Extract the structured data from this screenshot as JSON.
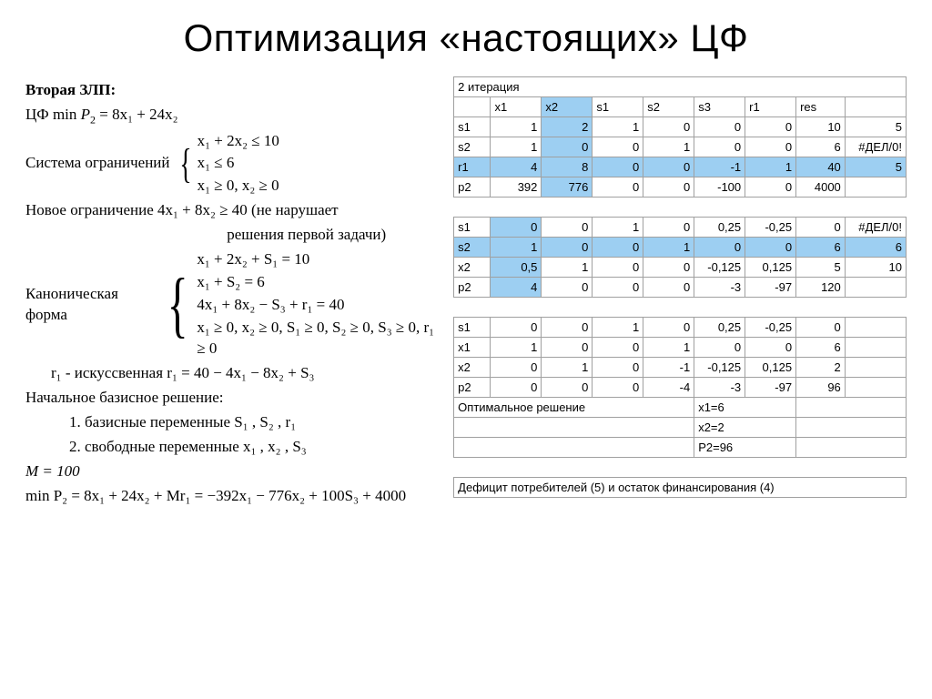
{
  "title": "Оптимизация «настоящих» ЦФ",
  "left": {
    "h1": "Вторая ЗЛП:",
    "obj_label": "ЦФ  min",
    "obj_var": "P",
    "obj_sub": "2",
    "obj_rhs": "= 8x₁ + 24x₂",
    "constr_label": "Система ограничений",
    "constr1": "x₁ + 2x₂ ≤ 10",
    "constr2": "x₁ ≤ 6",
    "constr3": "x₁ ≥ 0,  x₂ ≥ 0",
    "newc_label": "Новое ограничение",
    "newc_formula": "4x₁ + 8x₂ ≥ 40",
    "newc_note": "(не нарушает",
    "newc_note2": "решения первой задачи)",
    "canon_label": "Каноническая форма",
    "canon1": "x₁ + 2x₂ + S₁ = 10",
    "canon2": "x₁ + S₂ = 6",
    "canon3": "4x₁ + 8x₂ − S₃ + r₁ = 40",
    "canon4": "x₁ ≥ 0, x₂ ≥ 0, S₁ ≥ 0, S₂ ≥ 0, S₃ ≥ 0, r₁ ≥ 0",
    "artificial": "r₁ - искусcвенная   r₁ = 40 − 4x₁ − 8x₂ + S₃",
    "initial_label": "Начальное базисное решение:",
    "initial1": "1.  базисные переменные  S₁ , S₂ , r₁",
    "initial2": "2.  свободные переменные  x₁ , x₂ , S₃",
    "M_label": "M = 100",
    "min_full": "min P₂ = 8x₁ + 24x₂ + Mr₁ = −392x₁ − 776x₂ + 100S₃ + 4000"
  },
  "right": {
    "iter_label": "2 итерация",
    "headers": [
      "",
      "x1",
      "x2",
      "s1",
      "s2",
      "s3",
      "r1",
      "res",
      ""
    ],
    "block1": [
      {
        "lab": "s1",
        "v": [
          "1",
          "2",
          "1",
          "0",
          "0",
          "0",
          "10",
          "5"
        ],
        "hlRow": false,
        "hlCol": 1
      },
      {
        "lab": "s2",
        "v": [
          "1",
          "0",
          "0",
          "1",
          "0",
          "0",
          "6",
          "#ДЕЛ/0!"
        ],
        "hlRow": false,
        "hlCol": 1
      },
      {
        "lab": "r1",
        "v": [
          "4",
          "8",
          "0",
          "0",
          "-1",
          "1",
          "40",
          "5"
        ],
        "hlRow": true,
        "hlCol": 1
      },
      {
        "lab": "p2",
        "v": [
          "392",
          "776",
          "0",
          "0",
          "-100",
          "0",
          "4000",
          ""
        ],
        "hlRow": false,
        "hlCol": 1
      }
    ],
    "block2": [
      {
        "lab": "s1",
        "v": [
          "0",
          "0",
          "1",
          "0",
          "0,25",
          "-0,25",
          "0",
          "#ДЕЛ/0!"
        ],
        "hlRow": false,
        "hlCol": 0
      },
      {
        "lab": "s2",
        "v": [
          "1",
          "0",
          "0",
          "1",
          "0",
          "0",
          "6",
          "6"
        ],
        "hlRow": true,
        "hlCol": 0
      },
      {
        "lab": "x2",
        "v": [
          "0,5",
          "1",
          "0",
          "0",
          "-0,125",
          "0,125",
          "5",
          "10"
        ],
        "hlRow": false,
        "hlCol": 0
      },
      {
        "lab": "p2",
        "v": [
          "4",
          "0",
          "0",
          "0",
          "-3",
          "-97",
          "120",
          ""
        ],
        "hlRow": false,
        "hlCol": 0
      }
    ],
    "block3": [
      {
        "lab": "s1",
        "v": [
          "0",
          "0",
          "1",
          "0",
          "0,25",
          "-0,25",
          "0",
          ""
        ]
      },
      {
        "lab": "x1",
        "v": [
          "1",
          "0",
          "0",
          "1",
          "0",
          "0",
          "6",
          ""
        ]
      },
      {
        "lab": "x2",
        "v": [
          "0",
          "1",
          "0",
          "-1",
          "-0,125",
          "0,125",
          "2",
          ""
        ]
      },
      {
        "lab": "p2",
        "v": [
          "0",
          "0",
          "0",
          "-4",
          "-3",
          "-97",
          "96",
          ""
        ]
      }
    ],
    "opt_label": "Оптимальное решение",
    "opt1": "x1=6",
    "opt2": "x2=2",
    "opt3": "P2=96",
    "deficit": "Дефицит потребителей (5) и остаток финансирования (4)"
  },
  "style": {
    "highlight_color": "#9dcff2",
    "border_color": "#a0a0a0",
    "title_fontsize": 42,
    "body_fontsize": 17,
    "table_fontsize": 13
  }
}
